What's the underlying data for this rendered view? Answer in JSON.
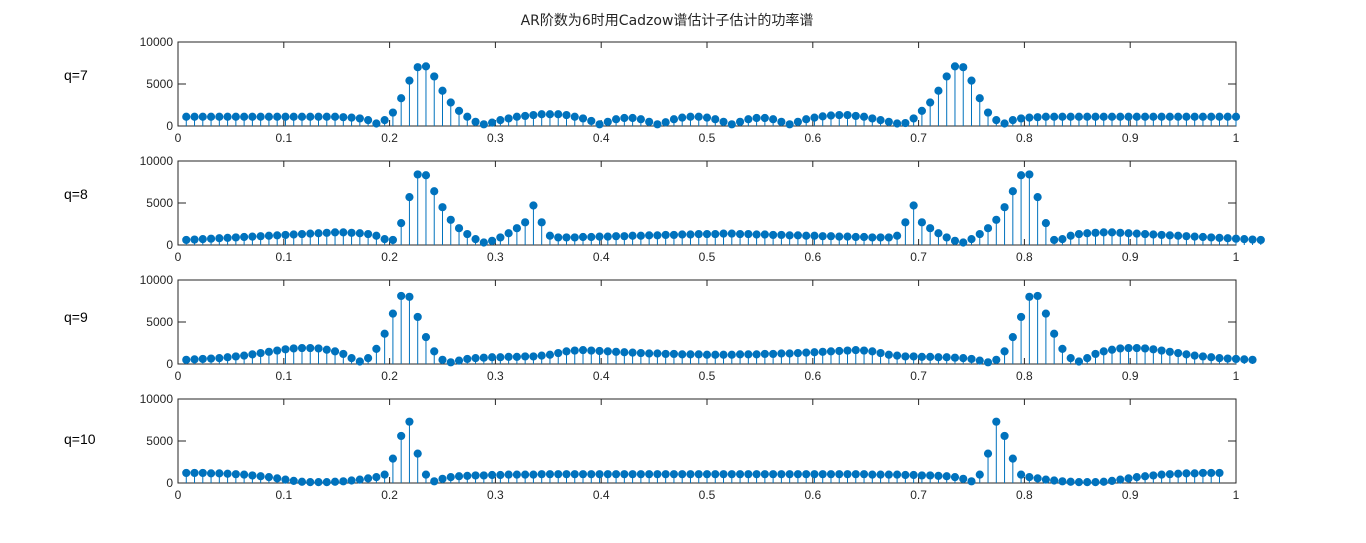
{
  "figure": {
    "title": "AR阶数为6时用Cadzow谱估计子估计的功率谱"
  },
  "colors": {
    "stem": "#0072BD",
    "axes": "#262626",
    "background": "#ffffff"
  },
  "chart_data": [
    {
      "type": "stem",
      "label": "q=7",
      "xlim": [
        0,
        1
      ],
      "ylim": [
        0,
        10000
      ],
      "xticks": [
        "0",
        "0.1",
        "0.2",
        "0.3",
        "0.4",
        "0.5",
        "0.6",
        "0.7",
        "0.8",
        "0.9",
        "1"
      ],
      "yticks": [
        "0",
        "5000",
        "10000"
      ],
      "grid": false,
      "x_start": 0.0078125,
      "x_step": 0.0078125,
      "values": [
        1100,
        1100,
        1100,
        1100,
        1100,
        1100,
        1100,
        1100,
        1100,
        1100,
        1100,
        1100,
        1100,
        1100,
        1100,
        1100,
        1100,
        1100,
        1100,
        1050,
        1000,
        900,
        700,
        300,
        700,
        1600,
        3300,
        5400,
        7000,
        7100,
        5900,
        4200,
        2800,
        1800,
        1100,
        500,
        200,
        400,
        700,
        900,
        1100,
        1200,
        1300,
        1400,
        1400,
        1400,
        1300,
        1100,
        900,
        600,
        200,
        500,
        800,
        950,
        950,
        800,
        500,
        200,
        450,
        800,
        1000,
        1100,
        1100,
        1000,
        800,
        500,
        200,
        500,
        800,
        950,
        950,
        800,
        500,
        200,
        500,
        800,
        1000,
        1150,
        1250,
        1300,
        1300,
        1200,
        1100,
        900,
        700,
        500,
        300,
        350,
        900,
        1800,
        2800,
        4200,
        5900,
        7100,
        7000,
        5400,
        3300,
        1600,
        700,
        300,
        700,
        900,
        1000,
        1050,
        1100,
        1100,
        1100,
        1100,
        1100,
        1100,
        1100,
        1100,
        1100,
        1100,
        1100,
        1100,
        1100,
        1100,
        1100,
        1100,
        1100,
        1100,
        1100,
        1100,
        1100,
        1100,
        1100,
        1100
      ]
    },
    {
      "type": "stem",
      "label": "q=8",
      "xlim": [
        0,
        1
      ],
      "ylim": [
        0,
        10000
      ],
      "xticks": [
        "0",
        "0.1",
        "0.2",
        "0.3",
        "0.4",
        "0.5",
        "0.6",
        "0.7",
        "0.8",
        "0.9",
        "1"
      ],
      "yticks": [
        "0",
        "5000",
        "10000"
      ],
      "grid": false,
      "x_start": 0.0078125,
      "x_step": 0.0078125,
      "values": [
        600,
        650,
        700,
        750,
        800,
        850,
        900,
        950,
        1000,
        1050,
        1100,
        1150,
        1200,
        1250,
        1300,
        1350,
        1400,
        1450,
        1500,
        1500,
        1450,
        1400,
        1300,
        1100,
        700,
        600,
        2600,
        5700,
        8400,
        8300,
        6400,
        4500,
        3000,
        2000,
        1300,
        700,
        300,
        500,
        900,
        1400,
        2000,
        2700,
        4700,
        2700,
        1100,
        900,
        900,
        900,
        950,
        950,
        1000,
        1000,
        1050,
        1050,
        1100,
        1100,
        1150,
        1150,
        1200,
        1200,
        1250,
        1250,
        1300,
        1300,
        1300,
        1350,
        1350,
        1300,
        1300,
        1250,
        1250,
        1200,
        1200,
        1150,
        1150,
        1100,
        1100,
        1050,
        1050,
        1000,
        1000,
        950,
        950,
        900,
        900,
        900,
        1100,
        2700,
        4700,
        2700,
        2000,
        1400,
        900,
        500,
        300,
        700,
        1300,
        2000,
        3000,
        4500,
        6400,
        8300,
        8400,
        5700,
        2600,
        600,
        700,
        1100,
        1300,
        1400,
        1450,
        1500,
        1500,
        1450,
        1400,
        1350,
        1300,
        1250,
        1200,
        1150,
        1100,
        1050,
        1000,
        950,
        900,
        850,
        800,
        750,
        700,
        650,
        600
      ]
    },
    {
      "type": "stem",
      "label": "q=9",
      "xlim": [
        0,
        1
      ],
      "ylim": [
        0,
        10000
      ],
      "xticks": [
        "0",
        "0.1",
        "0.2",
        "0.3",
        "0.4",
        "0.5",
        "0.6",
        "0.7",
        "0.8",
        "0.9",
        "1"
      ],
      "yticks": [
        "0",
        "5000",
        "10000"
      ],
      "grid": false,
      "x_start": 0.0078125,
      "x_step": 0.0078125,
      "values": [
        500,
        550,
        600,
        650,
        700,
        800,
        900,
        1000,
        1150,
        1300,
        1450,
        1600,
        1750,
        1850,
        1900,
        1900,
        1850,
        1700,
        1500,
        1200,
        700,
        300,
        700,
        1800,
        3600,
        6000,
        8100,
        8000,
        5600,
        3200,
        1500,
        500,
        200,
        400,
        600,
        700,
        750,
        800,
        800,
        850,
        850,
        900,
        900,
        1000,
        1100,
        1300,
        1500,
        1600,
        1650,
        1600,
        1550,
        1500,
        1450,
        1400,
        1350,
        1300,
        1250,
        1250,
        1200,
        1200,
        1150,
        1150,
        1150,
        1100,
        1100,
        1100,
        1100,
        1150,
        1150,
        1150,
        1200,
        1200,
        1250,
        1250,
        1300,
        1350,
        1400,
        1450,
        1500,
        1550,
        1600,
        1650,
        1600,
        1500,
        1300,
        1100,
        1000,
        900,
        900,
        850,
        850,
        800,
        800,
        750,
        700,
        600,
        400,
        200,
        500,
        1500,
        3200,
        5600,
        8000,
        8100,
        6000,
        3600,
        1800,
        700,
        300,
        700,
        1200,
        1500,
        1700,
        1850,
        1900,
        1900,
        1850,
        1750,
        1600,
        1450,
        1300,
        1150,
        1000,
        900,
        800,
        700,
        650,
        600,
        550,
        500
      ]
    },
    {
      "type": "stem",
      "label": "q=10",
      "xlim": [
        0,
        1
      ],
      "ylim": [
        0,
        10000
      ],
      "xticks": [
        "0",
        "0.1",
        "0.2",
        "0.3",
        "0.4",
        "0.5",
        "0.6",
        "0.7",
        "0.8",
        "0.9",
        "1"
      ],
      "yticks": [
        "0",
        "5000",
        "10000"
      ],
      "grid": false,
      "x_start": 0.0078125,
      "x_step": 0.0078125,
      "values": [
        1200,
        1200,
        1200,
        1150,
        1150,
        1100,
        1050,
        1000,
        900,
        800,
        700,
        550,
        400,
        250,
        150,
        100,
        100,
        100,
        150,
        200,
        300,
        400,
        550,
        700,
        1000,
        2900,
        5600,
        7300,
        3500,
        1000,
        200,
        500,
        700,
        800,
        850,
        900,
        900,
        950,
        950,
        1000,
        1000,
        1000,
        1000,
        1050,
        1050,
        1050,
        1050,
        1050,
        1050,
        1050,
        1050,
        1050,
        1050,
        1050,
        1050,
        1050,
        1050,
        1050,
        1050,
        1050,
        1050,
        1050,
        1050,
        1050,
        1050,
        1050,
        1050,
        1050,
        1050,
        1050,
        1050,
        1050,
        1050,
        1050,
        1050,
        1050,
        1050,
        1050,
        1050,
        1050,
        1050,
        1050,
        1050,
        1000,
        1000,
        1000,
        1000,
        950,
        950,
        900,
        900,
        850,
        800,
        700,
        500,
        200,
        1000,
        3500,
        7300,
        5600,
        2900,
        1000,
        700,
        550,
        400,
        300,
        200,
        150,
        100,
        100,
        100,
        150,
        250,
        400,
        550,
        700,
        800,
        900,
        1000,
        1050,
        1100,
        1150,
        1150,
        1200,
        1200,
        1200
      ]
    }
  ]
}
